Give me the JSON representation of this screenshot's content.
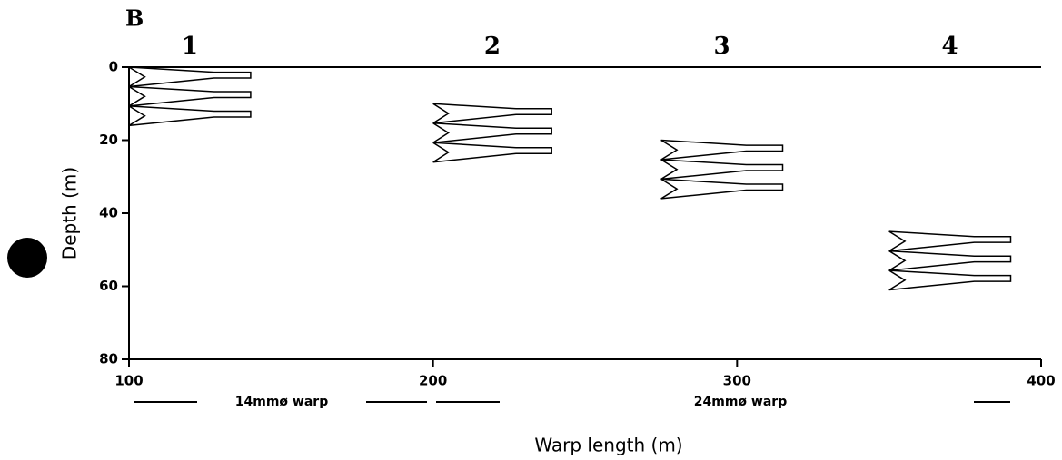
{
  "chart_data": {
    "type": "net-profile",
    "panel": "B",
    "x_label": "Warp length (m)",
    "y_label": "Depth (m)",
    "xlim": [
      100,
      400
    ],
    "xticks": [
      100,
      200,
      300,
      400
    ],
    "ylim": [
      0,
      80
    ],
    "yticks": [
      0,
      20,
      40,
      60,
      80
    ],
    "y_inverted": true,
    "annotations": [
      "14mmø warp",
      "24mmø warp"
    ],
    "nets": [
      {
        "label": "1",
        "x": [
          100,
          140
        ],
        "depth": [
          0,
          16
        ]
      },
      {
        "label": "2",
        "x": [
          200,
          239
        ],
        "depth": [
          10,
          26
        ]
      },
      {
        "label": "3",
        "x": [
          275,
          315
        ],
        "depth": [
          20,
          36
        ]
      },
      {
        "label": "4",
        "x": [
          350,
          390
        ],
        "depth": [
          45,
          61
        ]
      }
    ]
  }
}
